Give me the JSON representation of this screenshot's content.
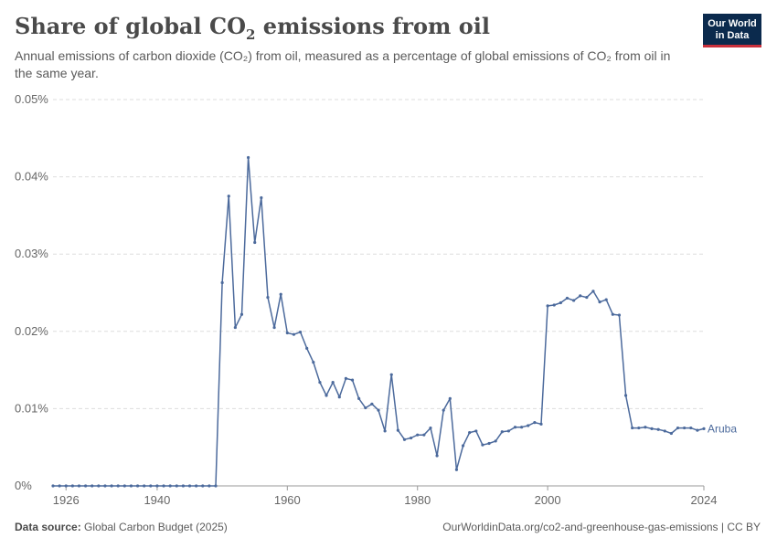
{
  "header": {
    "title_main": "Share of global CO",
    "title_sub": "2",
    "title_rest": " emissions from oil",
    "subtitle": "Annual emissions of carbon dioxide (CO₂) from oil, measured as a percentage of global emissions of CO₂ from oil in the same year."
  },
  "logo": {
    "line1": "Our World",
    "line2": "in Data"
  },
  "footer": {
    "source_label": "Data source:",
    "source_text": " Global Carbon Budget (2025)",
    "url": "OurWorldinData.org/co2-and-greenhouse-gas-emissions | CC BY"
  },
  "colors": {
    "series": "#4c6a9c",
    "grid": "#dddddd",
    "axis": "#999999",
    "text": "#666666"
  },
  "chart_data": {
    "type": "line",
    "xlim": [
      1924,
      2024
    ],
    "ylim": [
      0,
      0.05
    ],
    "y_ticks": [
      0,
      0.01,
      0.02,
      0.03,
      0.04,
      0.05
    ],
    "y_tick_labels": [
      "0%",
      "0.01%",
      "0.02%",
      "0.03%",
      "0.04%",
      "0.05%"
    ],
    "x_ticks": [
      1926,
      1940,
      1960,
      1980,
      2000,
      2024
    ],
    "x_tick_labels": [
      "1926",
      "1940",
      "1960",
      "1980",
      "2000",
      "2024"
    ],
    "grid": "horizontal dashed",
    "series": [
      {
        "name": "Aruba",
        "x": [
          1924,
          1925,
          1926,
          1927,
          1928,
          1929,
          1930,
          1931,
          1932,
          1933,
          1934,
          1935,
          1936,
          1937,
          1938,
          1939,
          1940,
          1941,
          1942,
          1943,
          1944,
          1945,
          1946,
          1947,
          1948,
          1949,
          1950,
          1951,
          1952,
          1953,
          1954,
          1955,
          1956,
          1957,
          1958,
          1959,
          1960,
          1961,
          1962,
          1963,
          1964,
          1965,
          1966,
          1967,
          1968,
          1969,
          1970,
          1971,
          1972,
          1973,
          1974,
          1975,
          1976,
          1977,
          1978,
          1979,
          1980,
          1981,
          1982,
          1983,
          1984,
          1985,
          1986,
          1987,
          1988,
          1989,
          1990,
          1991,
          1992,
          1993,
          1994,
          1995,
          1996,
          1997,
          1998,
          1999,
          2000,
          2001,
          2002,
          2003,
          2004,
          2005,
          2006,
          2007,
          2008,
          2009,
          2010,
          2011,
          2012,
          2013,
          2014,
          2015,
          2016,
          2017,
          2018,
          2019,
          2020,
          2021,
          2022,
          2023,
          2024
        ],
        "y": [
          0,
          0,
          0,
          0,
          0,
          0,
          0,
          0,
          0,
          0,
          0,
          0,
          0,
          0,
          0,
          0,
          0,
          0,
          0,
          0,
          0,
          0,
          0,
          0,
          0,
          0,
          0.0263,
          0.0375,
          0.0205,
          0.0222,
          0.0425,
          0.0315,
          0.0373,
          0.0244,
          0.0205,
          0.0248,
          0.0198,
          0.0196,
          0.0199,
          0.0178,
          0.016,
          0.0134,
          0.0117,
          0.0134,
          0.0115,
          0.0139,
          0.0137,
          0.0113,
          0.0101,
          0.0106,
          0.0098,
          0.0071,
          0.0144,
          0.0072,
          0.006,
          0.0062,
          0.0066,
          0.0066,
          0.0075,
          0.0039,
          0.0098,
          0.0113,
          0.0021,
          0.0052,
          0.0069,
          0.0071,
          0.0053,
          0.0055,
          0.0058,
          0.007,
          0.0071,
          0.0076,
          0.0076,
          0.0078,
          0.0082,
          0.008,
          0.0233,
          0.0234,
          0.0237,
          0.0243,
          0.024,
          0.0246,
          0.0244,
          0.0252,
          0.0238,
          0.0241,
          0.0222,
          0.0221,
          0.0117,
          0.0075,
          0.0075,
          0.0076,
          0.0074,
          0.0073,
          0.0071,
          0.0068,
          0.0075,
          0.0075,
          0.0075,
          0.0072,
          0.0074
        ]
      }
    ]
  }
}
